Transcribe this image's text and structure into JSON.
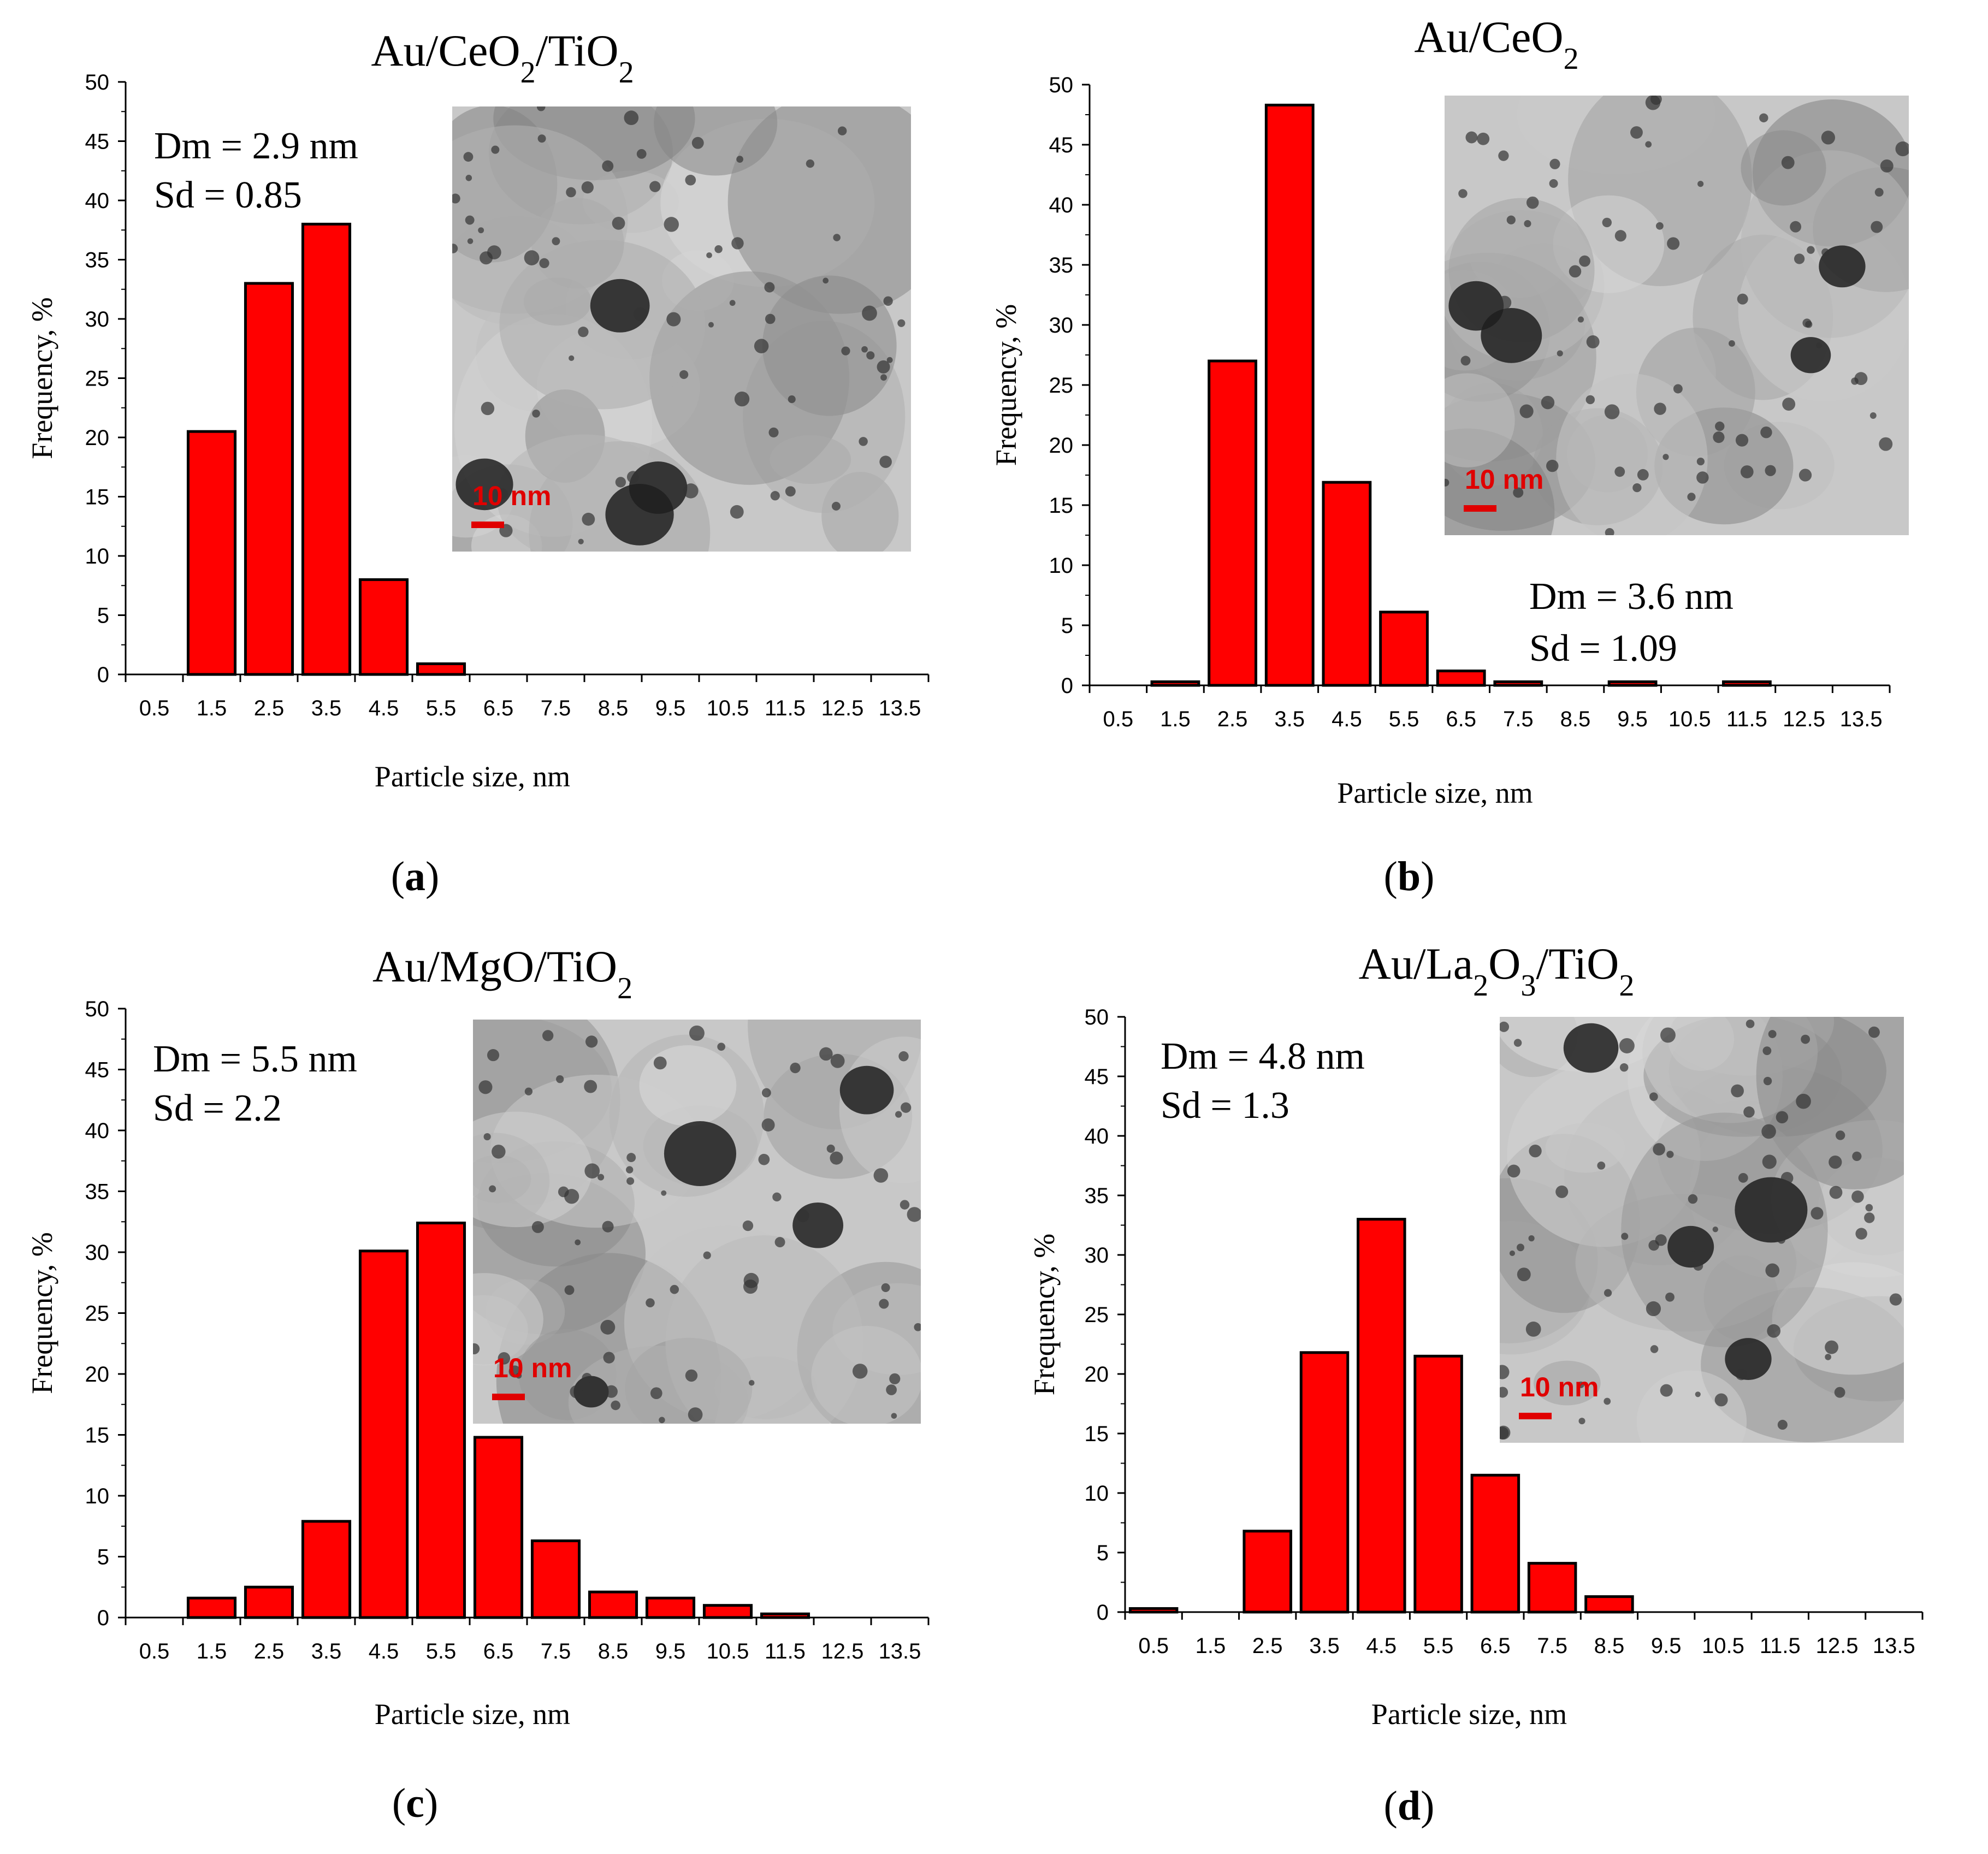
{
  "colors": {
    "bar_fill": "#ff0000",
    "bar_stroke": "#000000",
    "scale_bar": "#e00000",
    "axis": "#000000"
  },
  "chart_data": [
    {
      "panel_id": "a",
      "type": "bar",
      "title_parts": [
        "Au/CeO",
        "2",
        "/TiO",
        "2"
      ],
      "panel_letter": "a",
      "stats": {
        "dm": "Dm = 2.9 nm",
        "sd": "Sd = 0.85"
      },
      "inset": {
        "scale_label": "10 nm"
      },
      "categories": [
        "0.5",
        "1.5",
        "2.5",
        "3.5",
        "4.5",
        "5.5",
        "6.5",
        "7.5",
        "8.5",
        "9.5",
        "10.5",
        "11.5",
        "12.5",
        "13.5"
      ],
      "values": [
        0,
        20.5,
        33,
        38,
        8,
        0.9,
        0,
        0,
        0,
        0,
        0,
        0,
        0,
        0
      ],
      "yticks": [
        "0",
        "5",
        "10",
        "15",
        "20",
        "25",
        "30",
        "35",
        "40",
        "45",
        "50"
      ],
      "ylim": [
        0,
        50
      ],
      "xlabel": "Particle size, nm",
      "ylabel": "Frequency, %"
    },
    {
      "panel_id": "b",
      "type": "bar",
      "title_parts": [
        "Au/CeO",
        "2"
      ],
      "panel_letter": "b",
      "stats": {
        "dm": "Dm = 3.6 nm",
        "sd": "Sd = 1.09"
      },
      "inset": {
        "scale_label": "10 nm"
      },
      "categories": [
        "0.5",
        "1.5",
        "2.5",
        "3.5",
        "4.5",
        "5.5",
        "6.5",
        "7.5",
        "8.5",
        "9.5",
        "10.5",
        "11.5",
        "12.5",
        "13.5"
      ],
      "values": [
        0,
        0.3,
        27,
        48.3,
        16.9,
        6.1,
        1.2,
        0.3,
        0,
        0.3,
        0,
        0.3,
        0,
        0
      ],
      "yticks": [
        "0",
        "5",
        "10",
        "15",
        "20",
        "25",
        "30",
        "35",
        "40",
        "45",
        "50"
      ],
      "ylim": [
        0,
        50
      ],
      "xlabel": "Particle size, nm",
      "ylabel": "Frequency, %"
    },
    {
      "panel_id": "c",
      "type": "bar",
      "title_parts": [
        "Au/MgO/TiO",
        "2"
      ],
      "panel_letter": "c",
      "stats": {
        "dm": "Dm = 5.5 nm",
        "sd": "Sd = 2.2"
      },
      "inset": {
        "scale_label": "10 nm"
      },
      "categories": [
        "0.5",
        "1.5",
        "2.5",
        "3.5",
        "4.5",
        "5.5",
        "6.5",
        "7.5",
        "8.5",
        "9.5",
        "10.5",
        "11.5",
        "12.5",
        "13.5"
      ],
      "values": [
        0,
        1.6,
        2.5,
        7.9,
        30.1,
        32.4,
        14.8,
        6.3,
        2.1,
        1.6,
        1.0,
        0.3,
        0,
        0
      ],
      "yticks": [
        "0",
        "5",
        "10",
        "15",
        "20",
        "25",
        "30",
        "35",
        "40",
        "45",
        "50"
      ],
      "ylim": [
        0,
        50
      ],
      "xlabel": "Particle size, nm",
      "ylabel": "Frequency, %"
    },
    {
      "panel_id": "d",
      "type": "bar",
      "title_parts": [
        "Au/La",
        "2",
        "O",
        "3",
        "/TiO",
        "2"
      ],
      "panel_letter": "d",
      "stats": {
        "dm": "Dm = 4.8 nm",
        "sd": "Sd = 1.3"
      },
      "inset": {
        "scale_label": "10 nm"
      },
      "categories": [
        "0.5",
        "1.5",
        "2.5",
        "3.5",
        "4.5",
        "5.5",
        "6.5",
        "7.5",
        "8.5",
        "9.5",
        "10.5",
        "11.5",
        "12.5",
        "13.5"
      ],
      "values": [
        0.3,
        0,
        6.8,
        21.8,
        33,
        21.5,
        11.5,
        4.1,
        1.3,
        0,
        0,
        0,
        0,
        0
      ],
      "yticks": [
        "0",
        "5",
        "10",
        "15",
        "20",
        "25",
        "30",
        "35",
        "40",
        "45",
        "50"
      ],
      "ylim": [
        0,
        50
      ],
      "xlabel": "Particle size, nm",
      "ylabel": "Frequency, %"
    }
  ]
}
